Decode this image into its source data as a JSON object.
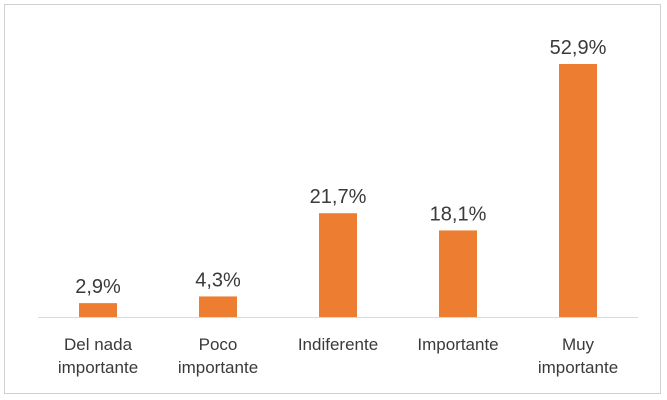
{
  "chart_data": {
    "type": "bar",
    "categories": [
      [
        "Del nada",
        "importante"
      ],
      [
        "Poco",
        "importante"
      ],
      [
        "Indiferente"
      ],
      [
        "Importante"
      ],
      [
        "Muy",
        "importante"
      ]
    ],
    "values": [
      2.9,
      4.3,
      21.7,
      18.1,
      52.9
    ],
    "data_labels": [
      "2,9%",
      "4,3%",
      "21,7%",
      "18,1%",
      "52,9%"
    ],
    "ylim": [
      0,
      60
    ],
    "grid": false,
    "legend": "none",
    "bar_color": "#ED7D31",
    "axis_color": "#d9d9d9",
    "title": "",
    "xlabel": "",
    "ylabel": ""
  }
}
